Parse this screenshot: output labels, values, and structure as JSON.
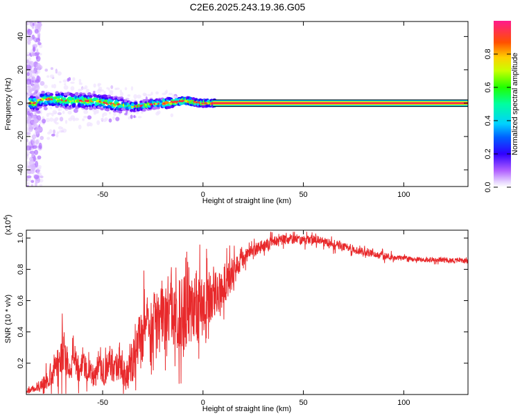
{
  "title": "C2E6.2025.243.19.36.G05",
  "chart_data": [
    {
      "type": "heatmap",
      "xlabel": "Height of straight line (km)",
      "ylabel": "Frequency (Hz)",
      "xlim": [
        -88,
        132
      ],
      "ylim": [
        -50,
        49
      ],
      "xticks": [
        -50,
        0,
        50,
        100
      ],
      "yticks": [
        -40,
        -20,
        0,
        20,
        40
      ],
      "colorbar": {
        "label": "Normalized spectral amplitude",
        "range": [
          0,
          1
        ],
        "ticks": [
          0.0,
          0.2,
          0.4,
          0.6,
          0.8
        ]
      },
      "ridge": {
        "description_frequency_hz": 0,
        "strong_band_start_km": 5,
        "band_halfwidth_hz": 2,
        "ridge_points": [
          {
            "x": -82,
            "y": 2
          },
          {
            "x": -75,
            "y": 2.5
          },
          {
            "x": -68,
            "y": 1.5
          },
          {
            "x": -60,
            "y": 1.5
          },
          {
            "x": -52,
            "y": 1
          },
          {
            "x": -45,
            "y": -0.5
          },
          {
            "x": -40,
            "y": -1
          },
          {
            "x": -35,
            "y": -2
          },
          {
            "x": -30,
            "y": -1.5
          },
          {
            "x": -25,
            "y": -0.5
          },
          {
            "x": -18,
            "y": 0
          },
          {
            "x": -12,
            "y": 1
          },
          {
            "x": -8,
            "y": 1.5
          },
          {
            "x": -4,
            "y": 0.5
          },
          {
            "x": 0,
            "y": 0
          },
          {
            "x": 5,
            "y": 0
          }
        ]
      }
    },
    {
      "type": "line",
      "xlabel": "Height of straight line (km)",
      "ylabel": "SNR (10 * v/v)",
      "yscale_label": "(x10",
      "yscale_exp": "4",
      "xlim": [
        -88,
        132
      ],
      "ylim": [
        0,
        1.05
      ],
      "xticks": [
        -50,
        0,
        50,
        100
      ],
      "yticks": [
        0.2,
        0.4,
        0.6,
        0.8,
        1.0
      ],
      "series": [
        {
          "name": "SNR",
          "color": "#e8292b",
          "x": [
            -88,
            -84,
            -80,
            -76,
            -72,
            -70,
            -68,
            -66,
            -64,
            -62,
            -60,
            -58,
            -56,
            -54,
            -52,
            -50,
            -48,
            -46,
            -44,
            -42,
            -40,
            -38,
            -36,
            -34,
            -32,
            -30,
            -28,
            -26,
            -24,
            -22,
            -20,
            -18,
            -16,
            -14,
            -12,
            -10,
            -8,
            -6,
            -4,
            -2,
            0,
            4,
            8,
            12,
            16,
            20,
            24,
            28,
            32,
            36,
            40,
            44,
            48,
            52,
            56,
            60,
            64,
            68,
            72,
            76,
            80,
            84,
            88,
            92,
            96,
            100,
            104,
            108,
            112,
            116,
            120,
            124,
            128,
            132
          ],
          "values": [
            0.02,
            0.04,
            0.07,
            0.12,
            0.18,
            0.3,
            0.22,
            0.15,
            0.25,
            0.13,
            0.22,
            0.17,
            0.14,
            0.11,
            0.18,
            0.13,
            0.16,
            0.22,
            0.15,
            0.2,
            0.17,
            0.12,
            0.2,
            0.28,
            0.33,
            0.38,
            0.45,
            0.4,
            0.5,
            0.43,
            0.55,
            0.42,
            0.6,
            0.45,
            0.55,
            0.5,
            0.6,
            0.52,
            0.58,
            0.55,
            0.6,
            0.62,
            0.67,
            0.73,
            0.79,
            0.86,
            0.91,
            0.94,
            0.96,
            0.98,
            0.99,
            0.995,
            0.99,
            0.985,
            0.99,
            0.98,
            0.96,
            0.95,
            0.94,
            0.92,
            0.91,
            0.9,
            0.89,
            0.88,
            0.875,
            0.87,
            0.865,
            0.86,
            0.86,
            0.86,
            0.86,
            0.855,
            0.86,
            0.85
          ],
          "noise": [
            0.02,
            0.03,
            0.05,
            0.1,
            0.15,
            0.18,
            0.15,
            0.1,
            0.12,
            0.08,
            0.12,
            0.12,
            0.1,
            0.08,
            0.12,
            0.1,
            0.12,
            0.15,
            0.1,
            0.15,
            0.15,
            0.12,
            0.2,
            0.22,
            0.22,
            0.25,
            0.25,
            0.25,
            0.28,
            0.25,
            0.3,
            0.28,
            0.3,
            0.25,
            0.3,
            0.35,
            0.35,
            0.3,
            0.3,
            0.28,
            0.25,
            0.2,
            0.18,
            0.15,
            0.1,
            0.08,
            0.06,
            0.05,
            0.05,
            0.04,
            0.04,
            0.04,
            0.04,
            0.04,
            0.04,
            0.04,
            0.04,
            0.04,
            0.03,
            0.03,
            0.03,
            0.03,
            0.03,
            0.03,
            0.02,
            0.02,
            0.02,
            0.02,
            0.02,
            0.02,
            0.02,
            0.02,
            0.02,
            0.02
          ]
        }
      ]
    }
  ]
}
